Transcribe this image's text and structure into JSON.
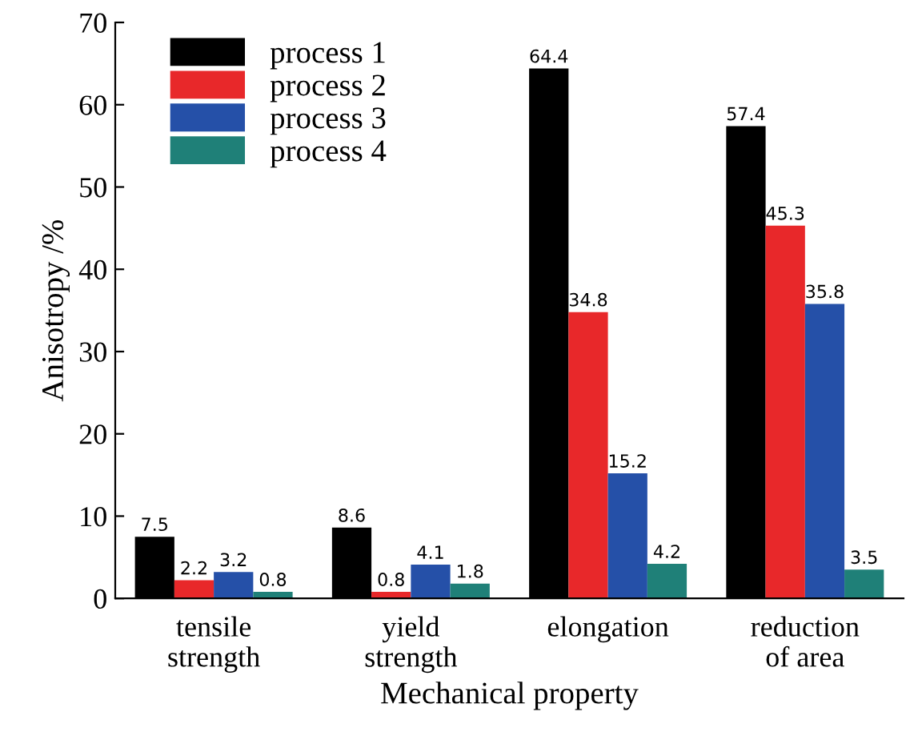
{
  "chart_data": {
    "type": "bar",
    "xlabel": "Mechanical property",
    "ylabel": "Anisotropy /%",
    "categories": [
      "tensile\nstrength",
      "yield\nstrength",
      "elongation",
      "reduction\nof area"
    ],
    "series": [
      {
        "name": "process 1",
        "color": "#000000",
        "values": [
          7.5,
          8.6,
          64.4,
          57.4
        ]
      },
      {
        "name": "process 2",
        "color": "#e8282a",
        "values": [
          2.2,
          0.8,
          34.8,
          45.3
        ]
      },
      {
        "name": "process 3",
        "color": "#2550a8",
        "values": [
          3.2,
          4.1,
          15.2,
          35.8
        ]
      },
      {
        "name": "process 4",
        "color": "#1f8078",
        "values": [
          0.8,
          1.8,
          4.2,
          3.5
        ]
      }
    ],
    "ylim": [
      0,
      70
    ],
    "yticks": [
      0,
      10,
      20,
      30,
      40,
      50,
      60,
      70
    ],
    "data_labels": true,
    "legend": "top left",
    "grid": false
  }
}
